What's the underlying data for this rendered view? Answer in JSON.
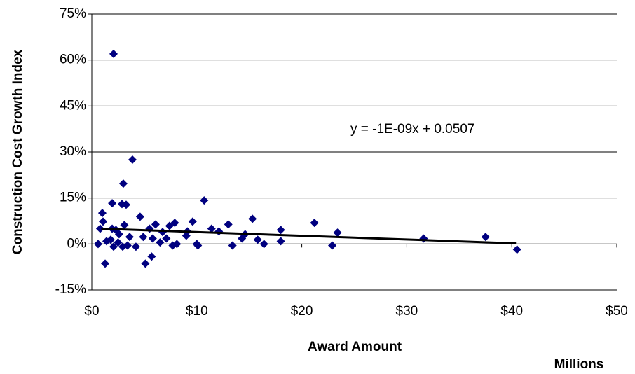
{
  "chart_data": {
    "type": "scatter",
    "y_label": "Construction Cost Growth Index",
    "x_label": "Award Amount",
    "x_unit_label": "Millions",
    "annotation": "y = -1E-09x + 0.0507",
    "color": "#000080",
    "grid": true,
    "xlim": [
      0,
      50
    ],
    "xticks": [
      {
        "value": 0,
        "label": "$0"
      },
      {
        "value": 10,
        "label": "$10"
      },
      {
        "value": 20,
        "label": "$20"
      },
      {
        "value": 30,
        "label": "$30"
      },
      {
        "value": 40,
        "label": "$40"
      },
      {
        "value": 50,
        "label": "$50"
      }
    ],
    "ylim": [
      -15,
      75
    ],
    "yticks": [
      {
        "value": -15,
        "label": "-15%"
      },
      {
        "value": 0,
        "label": "0%"
      },
      {
        "value": 15,
        "label": "15%"
      },
      {
        "value": 30,
        "label": "30%"
      },
      {
        "value": 45,
        "label": "45%"
      },
      {
        "value": 60,
        "label": "60%"
      },
      {
        "value": 75,
        "label": "75%"
      }
    ],
    "x": [
      2.07,
      3.87,
      3.0,
      10.7,
      1.94,
      2.87,
      3.27,
      1.0,
      4.6,
      15.3,
      1.07,
      21.2,
      7.9,
      9.6,
      13.0,
      3.1,
      6.07,
      7.4,
      0.8,
      1.94,
      2.3,
      11.4,
      12.1,
      18.0,
      5.5,
      6.74,
      9.1,
      9.0,
      23.4,
      14.6,
      2.6,
      3.6,
      4.9,
      5.8,
      7.1,
      14.3,
      15.8,
      31.6,
      37.5,
      18.0,
      0.6,
      1.4,
      1.8,
      2.5,
      2.07,
      2.94,
      3.4,
      4.2,
      6.5,
      7.7,
      8.1,
      10.0,
      10.1,
      13.4,
      16.4,
      22.9,
      1.27,
      5.1,
      5.7,
      40.5
    ],
    "values": [
      62.0,
      27.5,
      19.7,
      14.2,
      13.3,
      13.0,
      12.8,
      10.1,
      8.9,
      8.2,
      7.3,
      6.9,
      6.9,
      7.3,
      6.4,
      6.2,
      6.4,
      5.9,
      5.0,
      5.0,
      4.6,
      5.0,
      4.1,
      4.6,
      5.0,
      3.9,
      4.1,
      2.7,
      3.7,
      3.2,
      3.2,
      2.3,
      2.3,
      1.8,
      1.8,
      1.8,
      1.4,
      1.8,
      2.3,
      0.9,
      0,
      0.9,
      1.4,
      0.5,
      -0.9,
      -0.9,
      -0.5,
      -0.9,
      0.5,
      -0.5,
      0,
      0,
      -0.5,
      -0.5,
      0,
      -0.5,
      -6.4,
      -6.4,
      -4.1,
      -1.8
    ],
    "trendline": {
      "x": [
        0.9,
        40.4
      ],
      "values": [
        5.0,
        0.2
      ],
      "color": "#000000"
    }
  }
}
